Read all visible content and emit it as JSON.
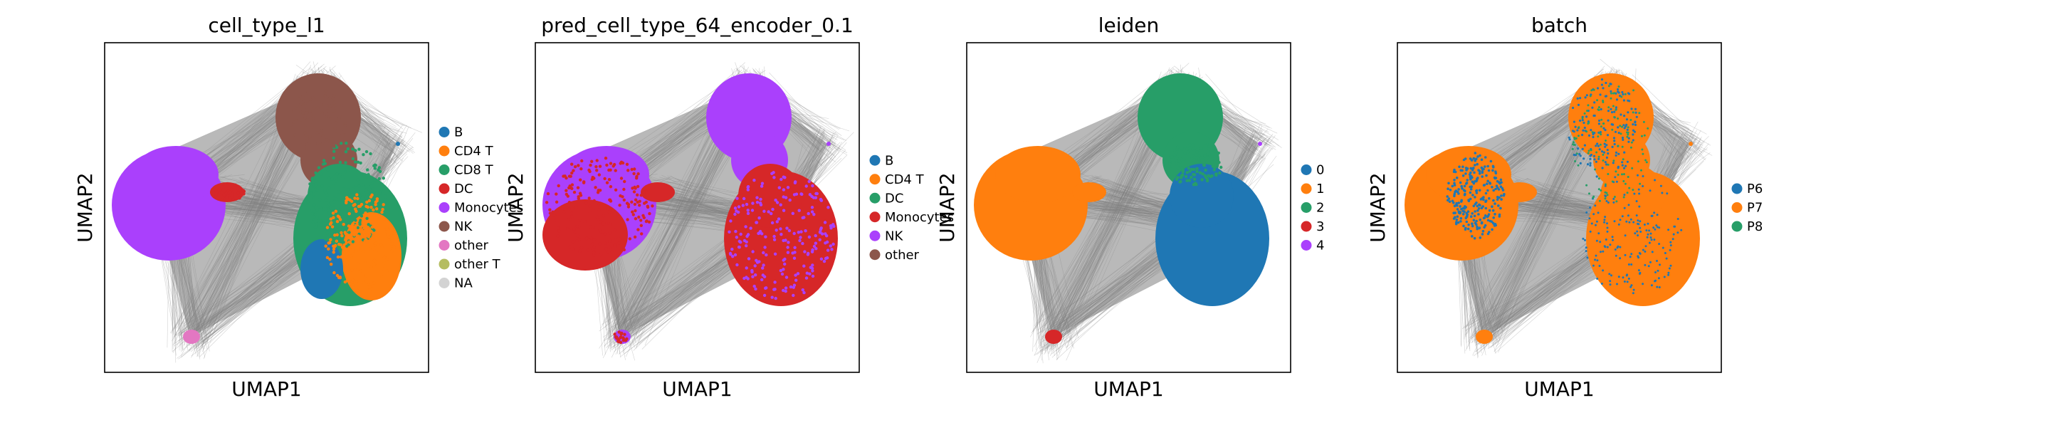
{
  "colors": {
    "tab_blue": "#1f77b4",
    "tab_orange": "#ff7f0e",
    "tab_green": "#279e68",
    "tab_red": "#d62728",
    "tab_purple": "#aa40fc",
    "tab_brown": "#8c564b",
    "tab_pink": "#e377c2",
    "tab_olive": "#b5bd61",
    "na_gray": "#d3d3d3",
    "edge_gray": "#808080"
  },
  "chart_data": [
    {
      "type": "scatter",
      "title": "cell_type_l1",
      "xlabel": "UMAP1",
      "ylabel": "UMAP2",
      "legend_placement": "right",
      "ticks": "none",
      "grid": false,
      "legend": [
        {
          "label": "B",
          "color": "#1f77b4"
        },
        {
          "label": "CD4 T",
          "color": "#ff7f0e"
        },
        {
          "label": "CD8 T",
          "color": "#279e68"
        },
        {
          "label": "DC",
          "color": "#d62728"
        },
        {
          "label": "Monocytes",
          "color": "#aa40fc"
        },
        {
          "label": "NK",
          "color": "#8c564b"
        },
        {
          "label": "other",
          "color": "#e377c2"
        },
        {
          "label": "other T",
          "color": "#b5bd61"
        },
        {
          "label": "NA",
          "color": "#d3d3d3"
        }
      ]
    },
    {
      "type": "scatter",
      "title": "pred_cell_type_64_encoder_0.1",
      "xlabel": "UMAP1",
      "ylabel": "UMAP2",
      "legend_placement": "right",
      "ticks": "none",
      "grid": false,
      "legend": [
        {
          "label": "B",
          "color": "#1f77b4"
        },
        {
          "label": "CD4 T",
          "color": "#ff7f0e"
        },
        {
          "label": "DC",
          "color": "#279e68"
        },
        {
          "label": "Monocytes",
          "color": "#d62728"
        },
        {
          "label": "NK",
          "color": "#aa40fc"
        },
        {
          "label": "other",
          "color": "#8c564b"
        }
      ]
    },
    {
      "type": "scatter",
      "title": "leiden",
      "xlabel": "UMAP1",
      "ylabel": "UMAP2",
      "legend_placement": "right",
      "ticks": "none",
      "grid": false,
      "legend": [
        {
          "label": "0",
          "color": "#1f77b4"
        },
        {
          "label": "1",
          "color": "#ff7f0e"
        },
        {
          "label": "2",
          "color": "#279e68"
        },
        {
          "label": "3",
          "color": "#d62728"
        },
        {
          "label": "4",
          "color": "#aa40fc"
        }
      ]
    },
    {
      "type": "scatter",
      "title": "batch",
      "xlabel": "UMAP1",
      "ylabel": "UMAP2",
      "legend_placement": "right",
      "ticks": "none",
      "grid": false,
      "legend": [
        {
          "label": "P6",
          "color": "#1f77b4"
        },
        {
          "label": "P7",
          "color": "#ff7f0e"
        },
        {
          "label": "P8",
          "color": "#279e68"
        }
      ]
    }
  ]
}
